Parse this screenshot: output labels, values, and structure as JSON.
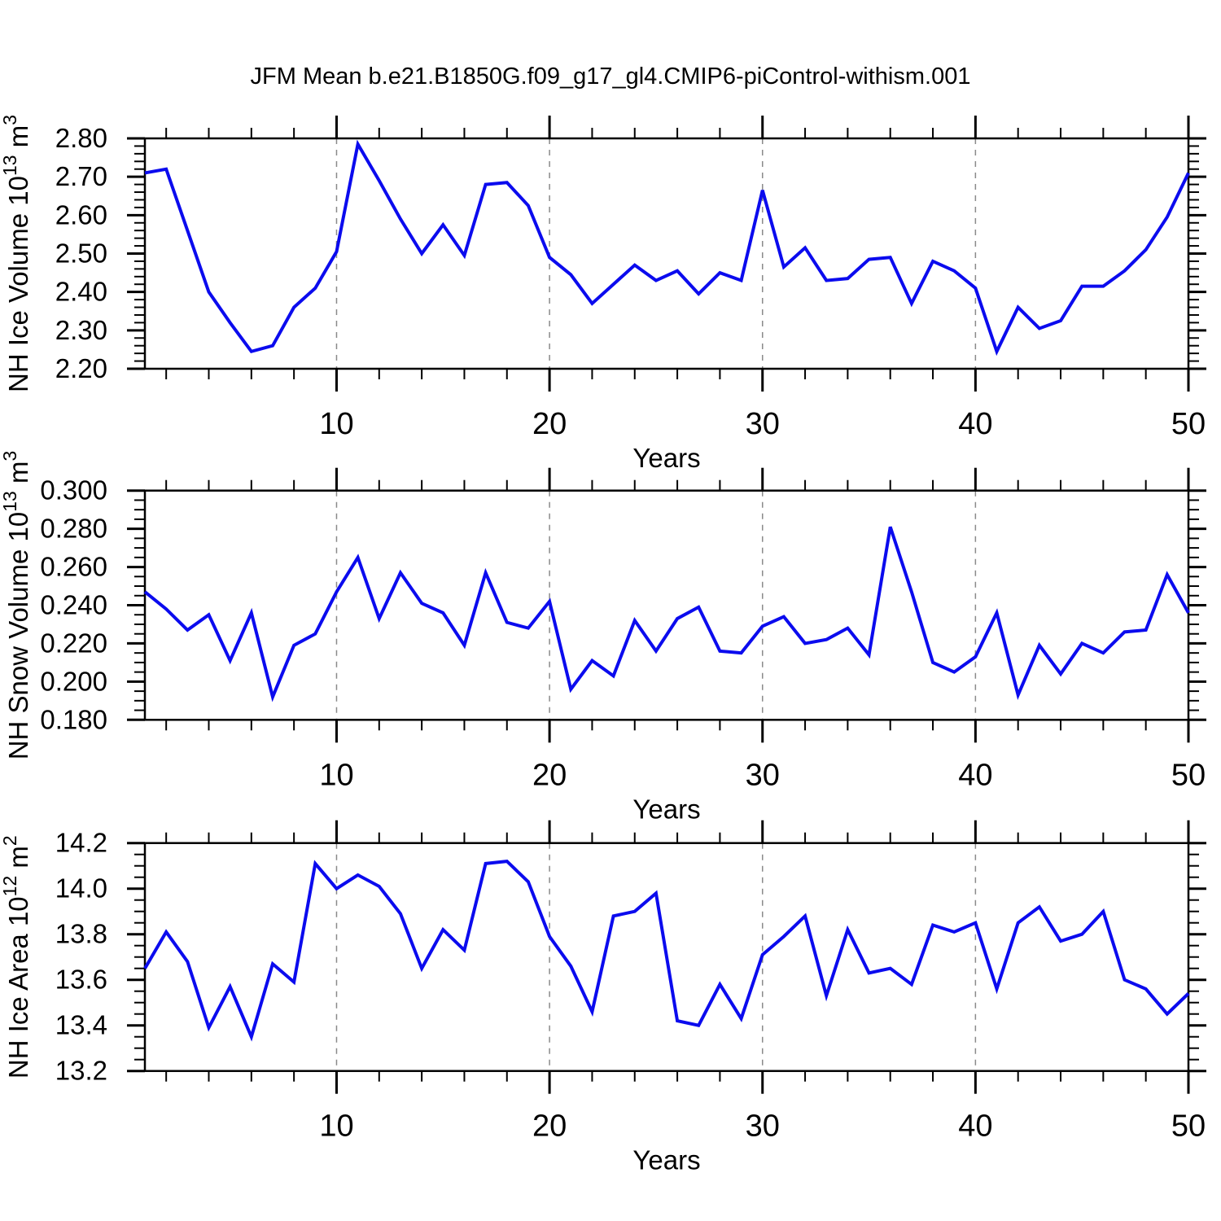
{
  "title": "JFM Mean b.e21.B1850G.f09_g17_gl4.CMIP6-piControl-withism.001",
  "line_color": "#0b0bee",
  "frame_color": "#000000",
  "gridline_color": "#8a8a8a",
  "x_axis_label": "Years",
  "chart_data": {
    "type": "line",
    "title": "JFM Mean b.e21.B1850G.f09_g17_gl4.CMIP6-piControl-withism.001",
    "x": {
      "label": "Years",
      "start": 1,
      "end": 50,
      "major_ticks": [
        10,
        20,
        30,
        40,
        50
      ],
      "minor_tick_step": 2,
      "dashed_gridlines": [
        10,
        20,
        30,
        40
      ]
    },
    "panels": [
      {
        "name": "nh-ice-volume",
        "ylabel": {
          "prefix": "NH Ice Volume 10",
          "exp": "13",
          "unit": " m",
          "unit_exp": "3"
        },
        "ylim": [
          2.2,
          2.8
        ],
        "y_tick_labels": [
          "2.20",
          "2.30",
          "2.40",
          "2.50",
          "2.60",
          "2.70",
          "2.80"
        ],
        "y_minor_step": 0.02,
        "values": [
          2.71,
          2.72,
          2.56,
          2.4,
          2.32,
          2.245,
          2.26,
          2.36,
          2.41,
          2.505,
          2.785,
          2.69,
          2.59,
          2.5,
          2.575,
          2.495,
          2.68,
          2.685,
          2.625,
          2.49,
          2.445,
          2.37,
          2.42,
          2.47,
          2.43,
          2.455,
          2.395,
          2.45,
          2.43,
          2.665,
          2.465,
          2.515,
          2.43,
          2.435,
          2.485,
          2.49,
          2.37,
          2.48,
          2.455,
          2.41,
          2.245,
          2.36,
          2.305,
          2.325,
          2.415,
          2.415,
          2.455,
          2.51,
          2.595,
          2.71
        ]
      },
      {
        "name": "nh-snow-volume",
        "ylabel": {
          "prefix": "NH Snow Volume 10",
          "exp": "13",
          "unit": " m",
          "unit_exp": "3"
        },
        "ylim": [
          0.18,
          0.3
        ],
        "y_tick_labels": [
          "0.180",
          "0.200",
          "0.220",
          "0.240",
          "0.260",
          "0.280",
          "0.300"
        ],
        "y_minor_step": 0.005,
        "values": [
          0.247,
          0.238,
          0.227,
          0.235,
          0.211,
          0.236,
          0.192,
          0.219,
          0.225,
          0.247,
          0.265,
          0.233,
          0.257,
          0.241,
          0.236,
          0.219,
          0.257,
          0.231,
          0.228,
          0.242,
          0.196,
          0.211,
          0.203,
          0.232,
          0.216,
          0.233,
          0.239,
          0.216,
          0.215,
          0.229,
          0.234,
          0.22,
          0.222,
          0.228,
          0.214,
          0.281,
          0.247,
          0.21,
          0.205,
          0.213,
          0.236,
          0.193,
          0.219,
          0.204,
          0.22,
          0.215,
          0.226,
          0.227,
          0.256,
          0.236
        ]
      },
      {
        "name": "nh-ice-area",
        "ylabel": {
          "prefix": "NH Ice Area 10",
          "exp": "12",
          "unit": " m",
          "unit_exp": "2"
        },
        "ylim": [
          13.2,
          14.2
        ],
        "y_tick_labels": [
          "13.2",
          "13.4",
          "13.6",
          "13.8",
          "14.0",
          "14.2"
        ],
        "y_minor_step": 0.05,
        "values": [
          13.65,
          13.81,
          13.68,
          13.39,
          13.57,
          13.35,
          13.67,
          13.59,
          14.11,
          14.0,
          14.06,
          14.01,
          13.89,
          13.65,
          13.82,
          13.73,
          14.11,
          14.12,
          14.03,
          13.79,
          13.66,
          13.46,
          13.88,
          13.9,
          13.98,
          13.42,
          13.4,
          13.58,
          13.43,
          13.71,
          13.79,
          13.88,
          13.53,
          13.82,
          13.63,
          13.65,
          13.58,
          13.84,
          13.81,
          13.85,
          13.56,
          13.85,
          13.92,
          13.77,
          13.8,
          13.9,
          13.6,
          13.56,
          13.45,
          13.54
        ]
      }
    ]
  }
}
